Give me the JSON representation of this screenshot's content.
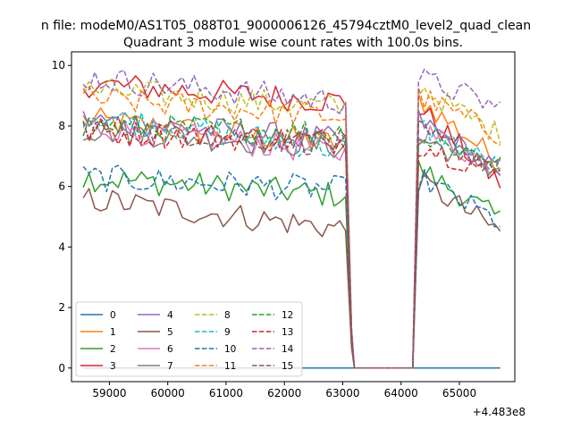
{
  "chart_data": {
    "type": "line",
    "suptitle": "n file: modeM0/AS1T05_088T01_9000006126_45794cztM0_level2_quad_clean",
    "title": "Quadrant 3 module wise count rates with 100.0s bins.",
    "xlabel": "",
    "ylabel": "",
    "x_offset_label": "+4.483e8",
    "xlim": [
      58350,
      65950
    ],
    "ylim": [
      -0.45,
      10.45
    ],
    "xticks": [
      59000,
      60000,
      61000,
      62000,
      63000,
      64000,
      65000
    ],
    "xtick_labels": [
      "59000",
      "60000",
      "61000",
      "62000",
      "63000",
      "64000",
      "65000"
    ],
    "yticks": [
      0,
      2,
      4,
      6,
      8,
      10
    ],
    "ytick_labels": [
      "0",
      "2",
      "4",
      "6",
      "8",
      "10"
    ],
    "grid": false,
    "legend": "lower-left",
    "series_style": [
      {
        "name": "0",
        "color": "#1f77b4",
        "dash": "solid",
        "segment1": [
          0,
          0
        ],
        "segment2": [
          0,
          0
        ]
      },
      {
        "name": "1",
        "color": "#ff7f0e",
        "dash": "solid",
        "segment1": [
          8.2,
          7.4
        ],
        "segment2": [
          8.9,
          6.8
        ]
      },
      {
        "name": "2",
        "color": "#2ca02c",
        "dash": "solid",
        "segment1": [
          6.3,
          5.7
        ],
        "segment2": [
          6.6,
          4.9
        ]
      },
      {
        "name": "3",
        "color": "#d62728",
        "dash": "solid",
        "segment1": [
          9.4,
          8.8
        ],
        "segment2": [
          8.6,
          6.1
        ]
      },
      {
        "name": "4",
        "color": "#9467bd",
        "dash": "solid",
        "segment1": [
          8.2,
          7.5
        ],
        "segment2": [
          8.2,
          6.5
        ]
      },
      {
        "name": "5",
        "color": "#8c564b",
        "dash": "solid",
        "segment1": [
          5.6,
          4.6
        ],
        "segment2": [
          6.2,
          4.5
        ]
      },
      {
        "name": "6",
        "color": "#e377c2",
        "dash": "solid",
        "segment1": [
          8.0,
          7.1
        ],
        "segment2": [
          7.9,
          6.6
        ]
      },
      {
        "name": "7",
        "color": "#7f7f7f",
        "dash": "solid",
        "segment1": [
          7.9,
          7.3
        ],
        "segment2": [
          7.6,
          6.5
        ]
      },
      {
        "name": "8",
        "color": "#bcbd22",
        "dash": "dashed",
        "segment1": [
          9.2,
          8.6
        ],
        "segment2": [
          9.3,
          7.7
        ]
      },
      {
        "name": "9",
        "color": "#17becf",
        "dash": "dashed",
        "segment1": [
          8.4,
          7.2
        ],
        "segment2": [
          8.0,
          6.6
        ]
      },
      {
        "name": "10",
        "color": "#1f77b4",
        "dash": "dashed",
        "segment1": [
          6.3,
          5.9
        ],
        "segment2": [
          6.3,
          4.8
        ]
      },
      {
        "name": "11",
        "color": "#ff7f0e",
        "dash": "dashed",
        "segment1": [
          8.9,
          8.3
        ],
        "segment2": [
          9.0,
          7.7
        ]
      },
      {
        "name": "12",
        "color": "#2ca02c",
        "dash": "dashed",
        "segment1": [
          8.0,
          7.8
        ],
        "segment2": [
          7.6,
          6.9
        ]
      },
      {
        "name": "13",
        "color": "#d62728",
        "dash": "dashed",
        "segment1": [
          7.8,
          7.5
        ],
        "segment2": [
          7.4,
          6.4
        ]
      },
      {
        "name": "14",
        "color": "#9467bd",
        "dash": "dashed",
        "segment1": [
          9.6,
          8.8
        ],
        "segment2": [
          9.6,
          8.6
        ]
      },
      {
        "name": "15",
        "color": "#8c564b",
        "dash": "dashed",
        "segment1": [
          8.0,
          7.4
        ],
        "segment2": [
          7.8,
          6.6
        ]
      }
    ],
    "x_segment1": [
      58550,
      63050
    ],
    "x_segment2": [
      64300,
      65650
    ],
    "gap_x": [
      63150,
      64200
    ]
  }
}
